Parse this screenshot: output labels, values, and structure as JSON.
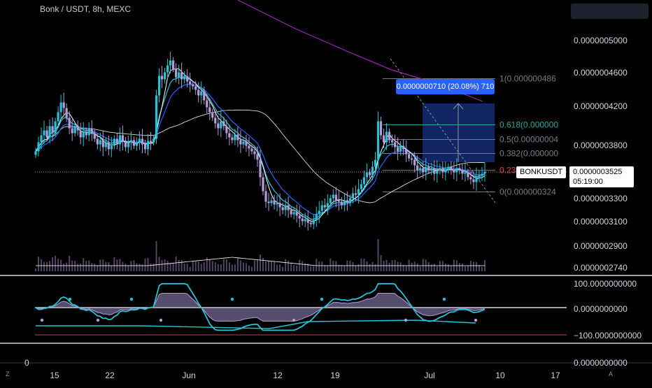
{
  "chart_data": {
    "type": "candlestick",
    "symbol": "Bonk / USDT, 8h, MEXC",
    "ticker_tag": "BONKUSDT",
    "last_price": "0.0000003525",
    "countdown": "05:19:00",
    "measure_label": "0.0000000710 (20.08%) 710",
    "price_axis": [
      "0.0000005000",
      "0.0000004600",
      "0.0000004200",
      "0.0000003800",
      "0.0000003300",
      "0.0000003100",
      "0.0000002900",
      "0.0000002740"
    ],
    "osc_axis": [
      "100.0000000000",
      "0.0000000000",
      "−100.0000000000"
    ],
    "lower_axis": [
      "0",
      "0.0000000000"
    ],
    "time_labels": [
      "15",
      "22",
      "Jun",
      "12",
      "19",
      "Jul",
      "10",
      "17"
    ],
    "fib_levels": [
      {
        "label": "1(0.000000486",
        "value": 4.86e-07,
        "color": "#787b86"
      },
      {
        "label": "0.618(0.000000",
        "value": 4.2e-07,
        "color": "#26a69a"
      },
      {
        "label": "0.5(0.00000004",
        "value": 3.99e-07,
        "color": "#787b86"
      },
      {
        "label": "0.382(0.000000",
        "value": 3.79e-07,
        "color": "#787b86"
      },
      {
        "label": "0.236(0.000000",
        "value": 3.55e-07,
        "color": "#f23645"
      },
      {
        "label": "0(0.000000324",
        "value": 3.24e-07,
        "color": "#787b86"
      }
    ],
    "corner_labels": [
      "Z",
      "A"
    ],
    "close": [
      3.82,
      3.95,
      4.05,
      4.12,
      4.02,
      4.18,
      4.08,
      4.25,
      4.38,
      4.52,
      4.44,
      4.3,
      4.15,
      4.08,
      4.18,
      4.12,
      4.02,
      4.1,
      4.05,
      4.14,
      4.08,
      4.0,
      3.92,
      3.98,
      3.88,
      3.95,
      3.85,
      3.9,
      4.0,
      3.92,
      4.05,
      3.96,
      3.88,
      3.95,
      3.98,
      3.9,
      3.94,
      4.0,
      3.92,
      3.85,
      3.97,
      3.95,
      4.0,
      4.62,
      4.9,
      4.85,
      4.95,
      5.05,
      5.12,
      5.0,
      4.88,
      4.95,
      4.85,
      4.9,
      4.82,
      4.78,
      4.75,
      4.7,
      4.62,
      4.68,
      4.55,
      4.45,
      4.38,
      4.3,
      4.22,
      4.15,
      4.25,
      4.18,
      4.08,
      4.02,
      3.98,
      4.06,
      3.98,
      3.92,
      3.96,
      3.9,
      3.86,
      3.82,
      3.78,
      3.7,
      3.45,
      3.25,
      3.1,
      3.08,
      3.12,
      3.06,
      3.08,
      3.02,
      2.98,
      3.05,
      2.98,
      2.92,
      2.95,
      2.9,
      2.86,
      2.82,
      2.85,
      2.8,
      2.78,
      2.84,
      2.92,
      2.97,
      3.05,
      3.02,
      3.08,
      3.15,
      3.2,
      3.12,
      3.1,
      3.05,
      3.12,
      3.08,
      3.15,
      3.22,
      3.2,
      3.28,
      3.35,
      3.45,
      3.52,
      3.48,
      3.6,
      3.7,
      4.25,
      4.05,
      3.95,
      4.1,
      3.98,
      3.95,
      3.88,
      3.82,
      3.9,
      3.85,
      3.78,
      3.72,
      3.7,
      3.62,
      3.55,
      3.58,
      3.52,
      3.6,
      3.55,
      3.58,
      3.5,
      3.55,
      3.58,
      3.52,
      3.55,
      3.6,
      3.56,
      3.52,
      3.58,
      3.55,
      3.5,
      3.52,
      3.45,
      3.42,
      3.38,
      3.45,
      3.48,
      3.5,
      3.53
    ]
  }
}
